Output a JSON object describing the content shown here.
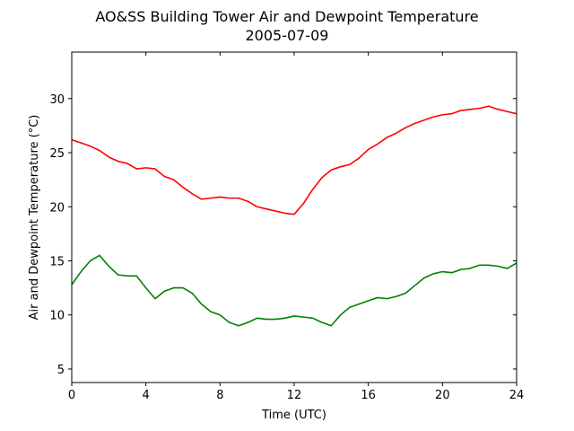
{
  "chart_data": {
    "type": "line",
    "title": "AO&SS Building Tower Air and Dewpoint Temperature",
    "subtitle": "2005-07-09",
    "x_label": "Time (UTC)",
    "y_label": "Air and Dewpoint Temperature (°C)",
    "x": [
      0,
      0.5,
      1,
      1.5,
      2,
      2.5,
      3,
      3.5,
      4,
      4.5,
      5,
      5.5,
      6,
      6.5,
      7,
      7.5,
      8,
      8.5,
      9,
      9.5,
      10,
      10.5,
      11,
      11.5,
      12,
      12.5,
      13,
      13.5,
      14,
      14.5,
      15,
      15.5,
      16,
      16.5,
      17,
      17.5,
      18,
      18.5,
      19,
      19.5,
      20,
      20.5,
      21,
      21.5,
      22,
      22.5,
      23,
      23.5,
      24
    ],
    "series": [
      {
        "color": "#ff0000",
        "values": [
          26.2,
          25.9,
          25.6,
          25.2,
          24.6,
          24.2,
          24.0,
          23.5,
          23.6,
          23.5,
          22.8,
          22.5,
          21.8,
          21.2,
          20.7,
          20.8,
          20.9,
          20.8,
          20.8,
          20.5,
          20.0,
          19.8,
          19.6,
          19.4,
          19.3,
          20.3,
          21.6,
          22.7,
          23.4,
          23.7,
          23.9,
          24.5,
          25.3,
          25.8,
          26.4,
          26.8,
          27.3,
          27.7,
          28.0,
          28.3,
          28.5,
          28.6,
          28.9,
          29.0,
          29.1,
          29.3,
          29.0,
          28.8,
          28.6
        ]
      },
      {
        "color": "#008000",
        "values": [
          12.8,
          14.0,
          15.0,
          15.5,
          14.5,
          13.7,
          13.6,
          13.6,
          12.5,
          11.5,
          12.2,
          12.5,
          12.5,
          12.0,
          11.0,
          10.3,
          10.0,
          9.3,
          9.0,
          9.3,
          9.7,
          9.6,
          9.6,
          9.7,
          9.9,
          9.8,
          9.7,
          9.3,
          9.0,
          10.0,
          10.7,
          11.0,
          11.3,
          11.6,
          11.5,
          11.7,
          12.0,
          12.7,
          13.4,
          13.8,
          14.0,
          13.9,
          14.2,
          14.3,
          14.6,
          14.6,
          14.5,
          14.3,
          14.8
        ]
      }
    ],
    "xlim": [
      0,
      24
    ],
    "xticks": [
      0,
      4,
      8,
      12,
      16,
      20,
      24
    ],
    "ylim": [
      3.75,
      34.3
    ],
    "yticks": [
      5,
      10,
      15,
      20,
      25,
      30
    ],
    "grid": false
  }
}
